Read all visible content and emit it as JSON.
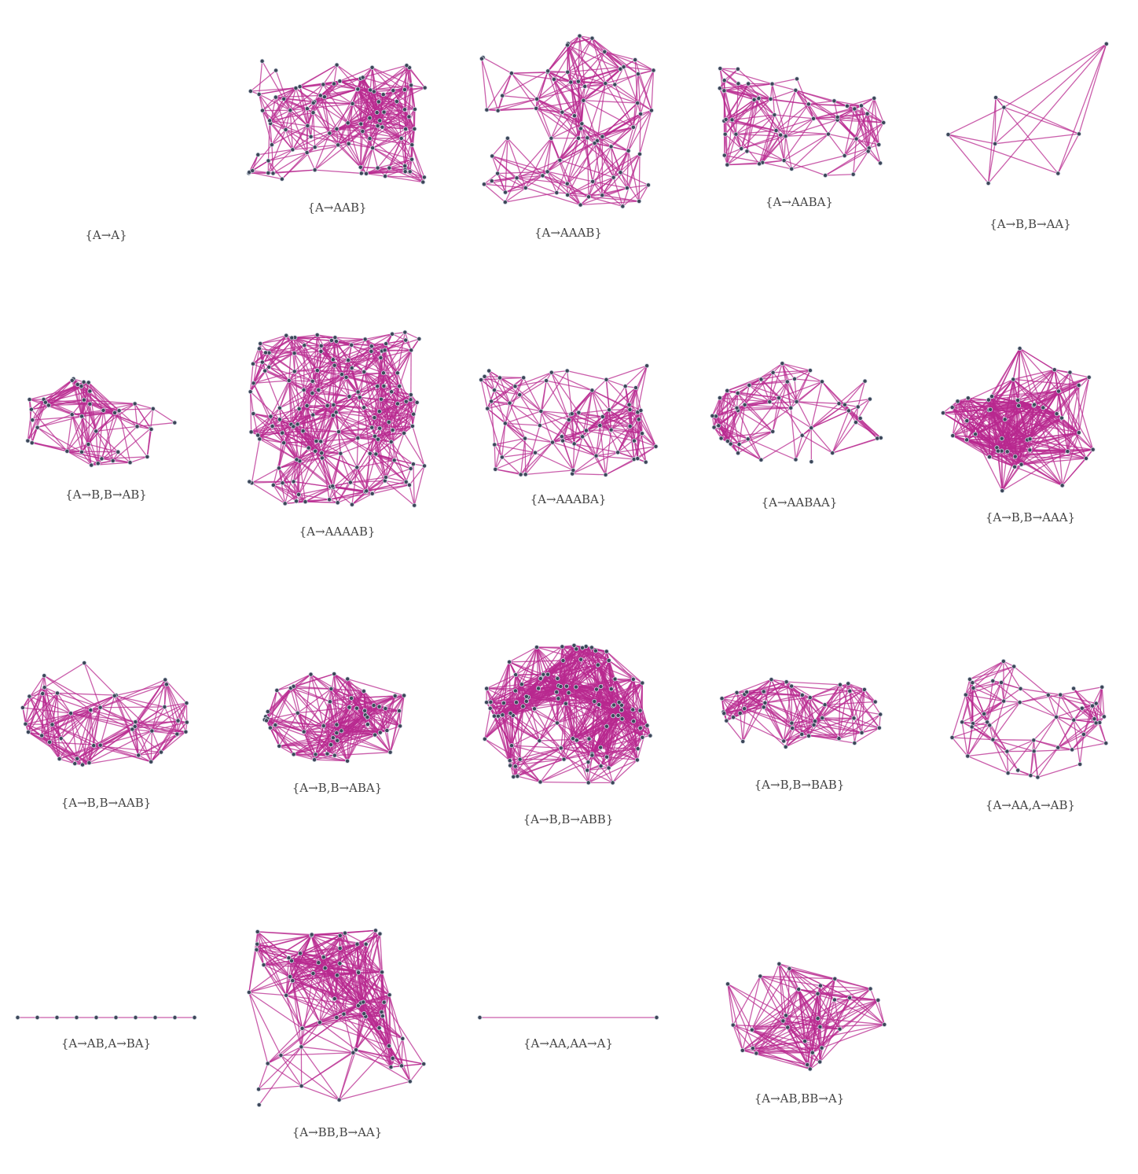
{
  "graphs": [
    {
      "label": "{A→A}"
    },
    {
      "label": "{A→AAB}"
    },
    {
      "label": "{A→AAAB}"
    },
    {
      "label": "{A→AABA}"
    },
    {
      "label": "{A→B,B→AA}"
    },
    {
      "label": "{A→B,B→AB}"
    },
    {
      "label": "{A→AAAAB}"
    },
    {
      "label": "{A→AAABA}"
    },
    {
      "label": "{A→AABAA}"
    },
    {
      "label": "{A→B,B→AAA}"
    },
    {
      "label": "{A→B,B→AAB}"
    },
    {
      "label": "{A→B,B→ABA}"
    },
    {
      "label": "{A→B,B→ABB}"
    },
    {
      "label": "{A→B,B→BAB}"
    },
    {
      "label": "{A→AA,A→AB}"
    },
    {
      "label": "{A→AB,A→BA}"
    },
    {
      "label": "{A→BB,B→AA}"
    },
    {
      "label": "{A→AA,AA→A}"
    },
    {
      "label": "{A→AB,BB→A}"
    }
  ]
}
